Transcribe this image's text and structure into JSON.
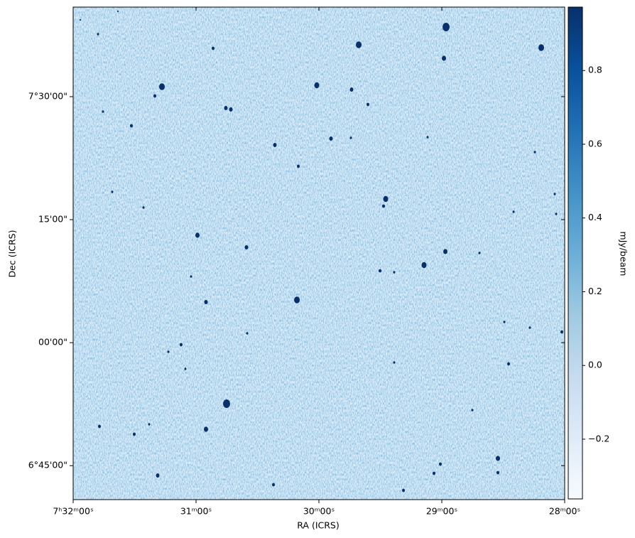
{
  "chart_data": {
    "type": "image",
    "colormap": "Blues",
    "x_label": "RA (ICRS)",
    "y_label": "Dec (ICRS)",
    "colorbar_label": "mJy/beam",
    "xlim": [
      113.0,
      112.0
    ],
    "xticks": [
      {
        "value": 113.0,
        "label": "7ʰ32ᵐ00ˢ"
      },
      {
        "value": 112.75,
        "label": "31ᵐ00ˢ"
      },
      {
        "value": 112.5,
        "label": "30ᵐ00ˢ"
      },
      {
        "value": 112.25,
        "label": "29ᵐ00ˢ"
      },
      {
        "value": 112.0,
        "label": "28ᵐ00ˢ"
      }
    ],
    "ylim": [
      6.681,
      7.682
    ],
    "yticks": [
      {
        "value": 7.5,
        "label": "7°30'00\""
      },
      {
        "value": 7.25,
        "label": "15'00\""
      },
      {
        "value": 7.0,
        "label": "00'00\""
      },
      {
        "value": 6.75,
        "label": "6°45'00\""
      }
    ],
    "clim": [
      -0.362,
      0.972
    ],
    "cticks": [
      {
        "value": -0.2,
        "label": "−0.2"
      },
      {
        "value": 0,
        "label": "0.0"
      },
      0.2,
      0.4,
      0.6,
      0.8
    ]
  }
}
